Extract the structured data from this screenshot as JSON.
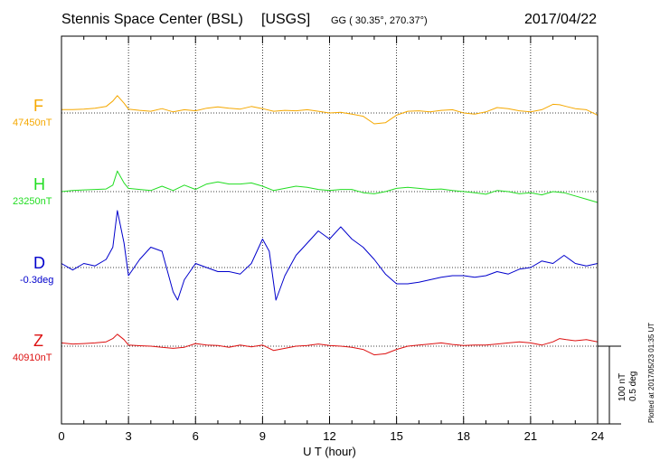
{
  "header": {
    "station": "Stennis Space Center (BSL)",
    "source": "[USGS]",
    "coords": "GG ( 30.35°, 270.37°)",
    "date": "2017/04/22"
  },
  "footer": {
    "plotted": "Plotted at 2017/05/23 01:35 UT"
  },
  "scale": {
    "line1": "100 nT",
    "line2": "0.5 deg"
  },
  "chart_data": {
    "type": "line",
    "xlabel": "U T (hour)",
    "xlim": [
      0,
      24
    ],
    "xticks": [
      0,
      3,
      6,
      9,
      12,
      15,
      18,
      21,
      24
    ],
    "xtick_labels": [
      "0",
      "3",
      "6",
      "9",
      "12",
      "15",
      "18",
      "21",
      "24"
    ],
    "grid": true,
    "series": [
      {
        "name": "F",
        "baseline_label": "47450nT",
        "color": "#f5a800",
        "x": [
          0,
          0.5,
          1,
          1.5,
          2,
          2.3,
          2.5,
          2.8,
          3,
          3.5,
          4,
          4.5,
          5,
          5.5,
          6,
          6.5,
          7,
          7.5,
          8,
          8.5,
          9,
          9.5,
          10,
          10.5,
          11,
          11.5,
          12,
          12.5,
          13,
          13.5,
          14,
          14.5,
          15,
          15.5,
          16,
          16.5,
          17,
          17.5,
          18,
          18.5,
          19,
          19.5,
          20,
          20.5,
          21,
          21.5,
          22,
          22.3,
          22.6,
          23,
          23.5,
          24
        ],
        "values": [
          16,
          16,
          18,
          22,
          30,
          55,
          80,
          45,
          18,
          12,
          8,
          20,
          5,
          15,
          10,
          22,
          28,
          22,
          18,
          30,
          20,
          8,
          12,
          10,
          15,
          8,
          0,
          3,
          -5,
          -15,
          -50,
          -45,
          -10,
          8,
          10,
          5,
          12,
          15,
          0,
          -5,
          5,
          25,
          20,
          10,
          5,
          15,
          40,
          38,
          30,
          20,
          15,
          -10
        ]
      },
      {
        "name": "H",
        "baseline_label": "23250nT",
        "color": "#22dd22",
        "x": [
          0,
          0.5,
          1,
          1.5,
          2,
          2.3,
          2.5,
          2.8,
          3,
          3.5,
          4,
          4.5,
          5,
          5.5,
          6,
          6.5,
          7,
          7.5,
          8,
          8.5,
          9,
          9.5,
          10,
          10.5,
          11,
          11.5,
          12,
          12.5,
          13,
          13.5,
          14,
          14.5,
          15,
          15.5,
          16,
          16.5,
          17,
          17.5,
          18,
          18.5,
          19,
          19.5,
          20,
          20.5,
          21,
          21.5,
          22,
          22.5,
          23,
          23.5,
          24
        ],
        "values": [
          0,
          5,
          8,
          10,
          12,
          30,
          95,
          40,
          15,
          10,
          5,
          25,
          5,
          30,
          10,
          35,
          45,
          35,
          35,
          40,
          25,
          5,
          15,
          25,
          20,
          10,
          5,
          10,
          10,
          -5,
          -10,
          0,
          15,
          20,
          15,
          10,
          12,
          5,
          0,
          -5,
          -12,
          5,
          0,
          -10,
          -5,
          -15,
          0,
          -5,
          -20,
          -35,
          -50
        ]
      },
      {
        "name": "D",
        "baseline_label": "-0.3deg",
        "color": "#0000cc",
        "x": [
          0,
          0.5,
          1,
          1.5,
          2,
          2.3,
          2.5,
          2.8,
          3,
          3.5,
          4,
          4.5,
          5,
          5.2,
          5.5,
          6,
          6.5,
          7,
          7.5,
          8,
          8.5,
          9,
          9.3,
          9.6,
          10,
          10.5,
          11,
          11.5,
          12,
          12.5,
          13,
          13.5,
          14,
          14.5,
          15,
          15.5,
          16,
          16.5,
          17,
          17.5,
          18,
          18.5,
          19,
          19.5,
          20,
          20.5,
          21,
          21.5,
          22,
          22.5,
          23,
          23.5,
          24
        ],
        "values": [
          0.05,
          -0.03,
          0.05,
          0.02,
          0.1,
          0.25,
          0.7,
          0.3,
          -0.1,
          0.1,
          0.25,
          0.2,
          -0.3,
          -0.4,
          -0.15,
          0.05,
          0,
          -0.05,
          -0.05,
          -0.08,
          0.05,
          0.35,
          0.2,
          -0.4,
          -0.1,
          0.15,
          0.3,
          0.45,
          0.35,
          0.5,
          0.35,
          0.25,
          0.1,
          -0.08,
          -0.2,
          -0.2,
          -0.18,
          -0.15,
          -0.12,
          -0.1,
          -0.1,
          -0.12,
          -0.1,
          -0.05,
          -0.08,
          -0.02,
          0,
          0.08,
          0.05,
          0.15,
          0.05,
          0.02,
          0.05
        ]
      },
      {
        "name": "Z",
        "baseline_label": "40910nT",
        "color": "#dd1111",
        "x": [
          0,
          0.5,
          1,
          1.5,
          2,
          2.3,
          2.5,
          2.8,
          3,
          3.5,
          4,
          4.5,
          5,
          5.5,
          6,
          6.5,
          7,
          7.5,
          8,
          8.5,
          9,
          9.5,
          10,
          10.5,
          11,
          11.5,
          12,
          12.5,
          13,
          13.5,
          14,
          14.5,
          15,
          15.5,
          16,
          16.5,
          17,
          17.5,
          18,
          18.5,
          19,
          19.5,
          20,
          20.5,
          21,
          21.5,
          22,
          22.3,
          22.6,
          23,
          23.5,
          24
        ],
        "values": [
          15,
          10,
          12,
          15,
          20,
          35,
          55,
          30,
          5,
          2,
          0,
          -5,
          -10,
          -5,
          12,
          5,
          3,
          -5,
          5,
          -3,
          5,
          -20,
          -10,
          0,
          3,
          10,
          3,
          0,
          -5,
          -15,
          -40,
          -35,
          -15,
          0,
          5,
          10,
          15,
          8,
          3,
          5,
          5,
          10,
          15,
          20,
          15,
          5,
          20,
          35,
          30,
          25,
          30,
          20
        ]
      }
    ]
  }
}
